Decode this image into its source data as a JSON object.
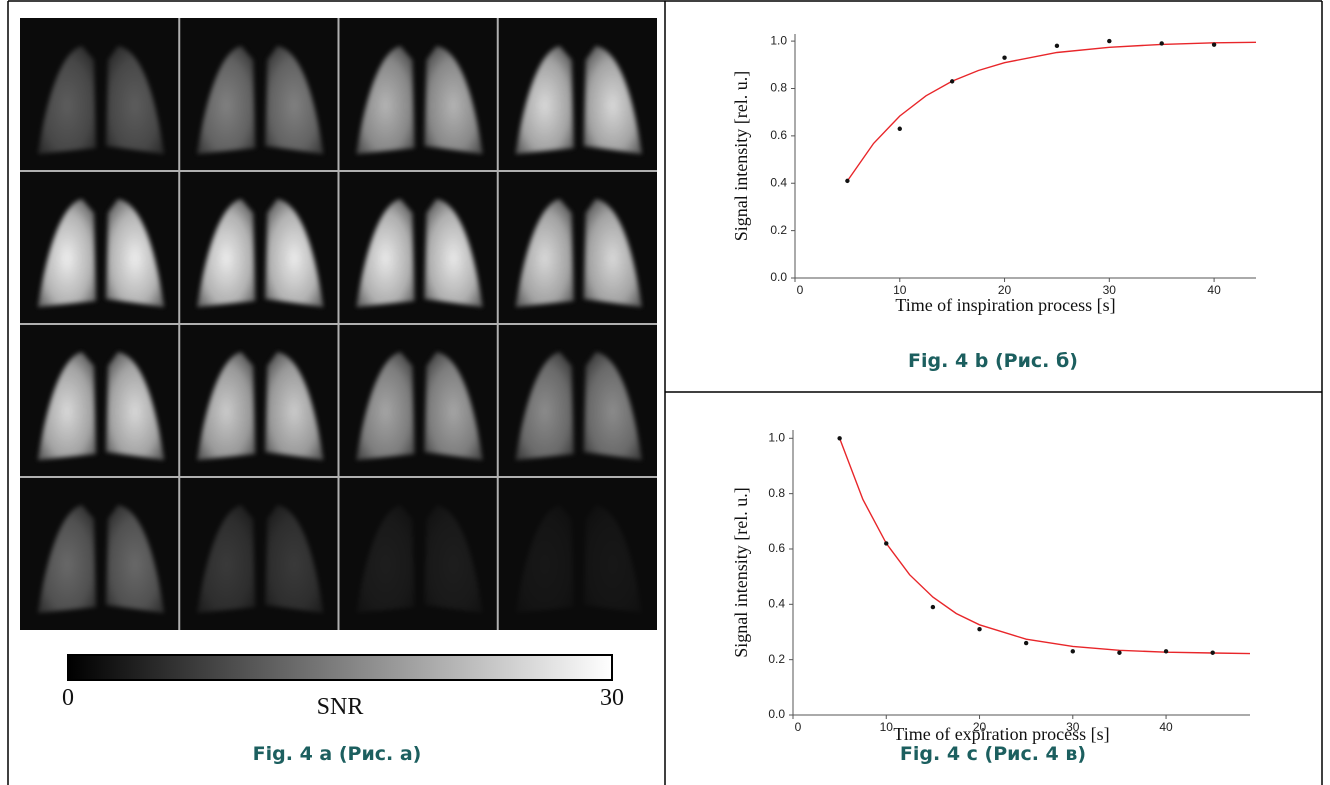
{
  "panel_a": {
    "colorbar": {
      "min": 0,
      "max": 30,
      "label": "SNR"
    },
    "caption": "Fig. 4 a (Рис.  а)"
  },
  "chart_data": [
    {
      "type": "scatter-fit",
      "caption": "Fig. 4 b (Рис.  б)",
      "x_label": "Time of inspiration process [s]",
      "y_label": "Signal intensity [rel. u.]",
      "xlim": [
        0,
        44
      ],
      "ylim": [
        0,
        1.03
      ],
      "xticks": [
        0,
        10,
        20,
        30,
        40
      ],
      "yticks": [
        {
          "value": 0,
          "label": "0.0"
        },
        0.2,
        0.4,
        0.6,
        0.8,
        {
          "value": 1,
          "label": "1.0"
        }
      ],
      "series": [
        {
          "mode": "line",
          "color": "#e8262a",
          "x": [
            5,
            7.5,
            10,
            12.5,
            15,
            17.5,
            20,
            25,
            30,
            35,
            40,
            44
          ],
          "values": [
            0.41,
            0.568,
            0.684,
            0.769,
            0.831,
            0.876,
            0.909,
            0.952,
            0.974,
            0.986,
            0.993,
            0.995
          ]
        },
        {
          "mode": "points",
          "color": "#111111",
          "x": [
            5,
            10,
            15,
            20,
            25,
            30,
            35,
            40
          ],
          "values": [
            0.41,
            0.63,
            0.83,
            0.93,
            0.98,
            1.0,
            0.99,
            0.985
          ]
        }
      ]
    },
    {
      "type": "scatter-fit",
      "caption": "Fig. 4 c (Рис. 4 в)",
      "x_label": "Time of expiration process [s]",
      "y_label": "Signal intensity [rel. u.]",
      "xlim": [
        0,
        49
      ],
      "ylim": [
        0,
        1.03
      ],
      "xticks": [
        0,
        10,
        20,
        30,
        40
      ],
      "yticks": [
        {
          "value": 0,
          "label": "0.0"
        },
        0.2,
        0.4,
        0.6,
        0.8,
        {
          "value": 1,
          "label": "1.0"
        }
      ],
      "series": [
        {
          "mode": "line",
          "color": "#e8262a",
          "x": [
            5,
            7.5,
            10,
            12.5,
            15,
            17.5,
            20,
            25,
            30,
            35,
            40,
            45,
            49
          ],
          "values": [
            1.0,
            0.779,
            0.62,
            0.507,
            0.426,
            0.367,
            0.326,
            0.274,
            0.248,
            0.234,
            0.227,
            0.224,
            0.222
          ]
        },
        {
          "mode": "points",
          "color": "#111111",
          "x": [
            5,
            10,
            15,
            20,
            25,
            30,
            35,
            40,
            45
          ],
          "values": [
            1.0,
            0.62,
            0.39,
            0.31,
            0.26,
            0.23,
            0.225,
            0.23,
            0.225
          ]
        }
      ]
    }
  ]
}
